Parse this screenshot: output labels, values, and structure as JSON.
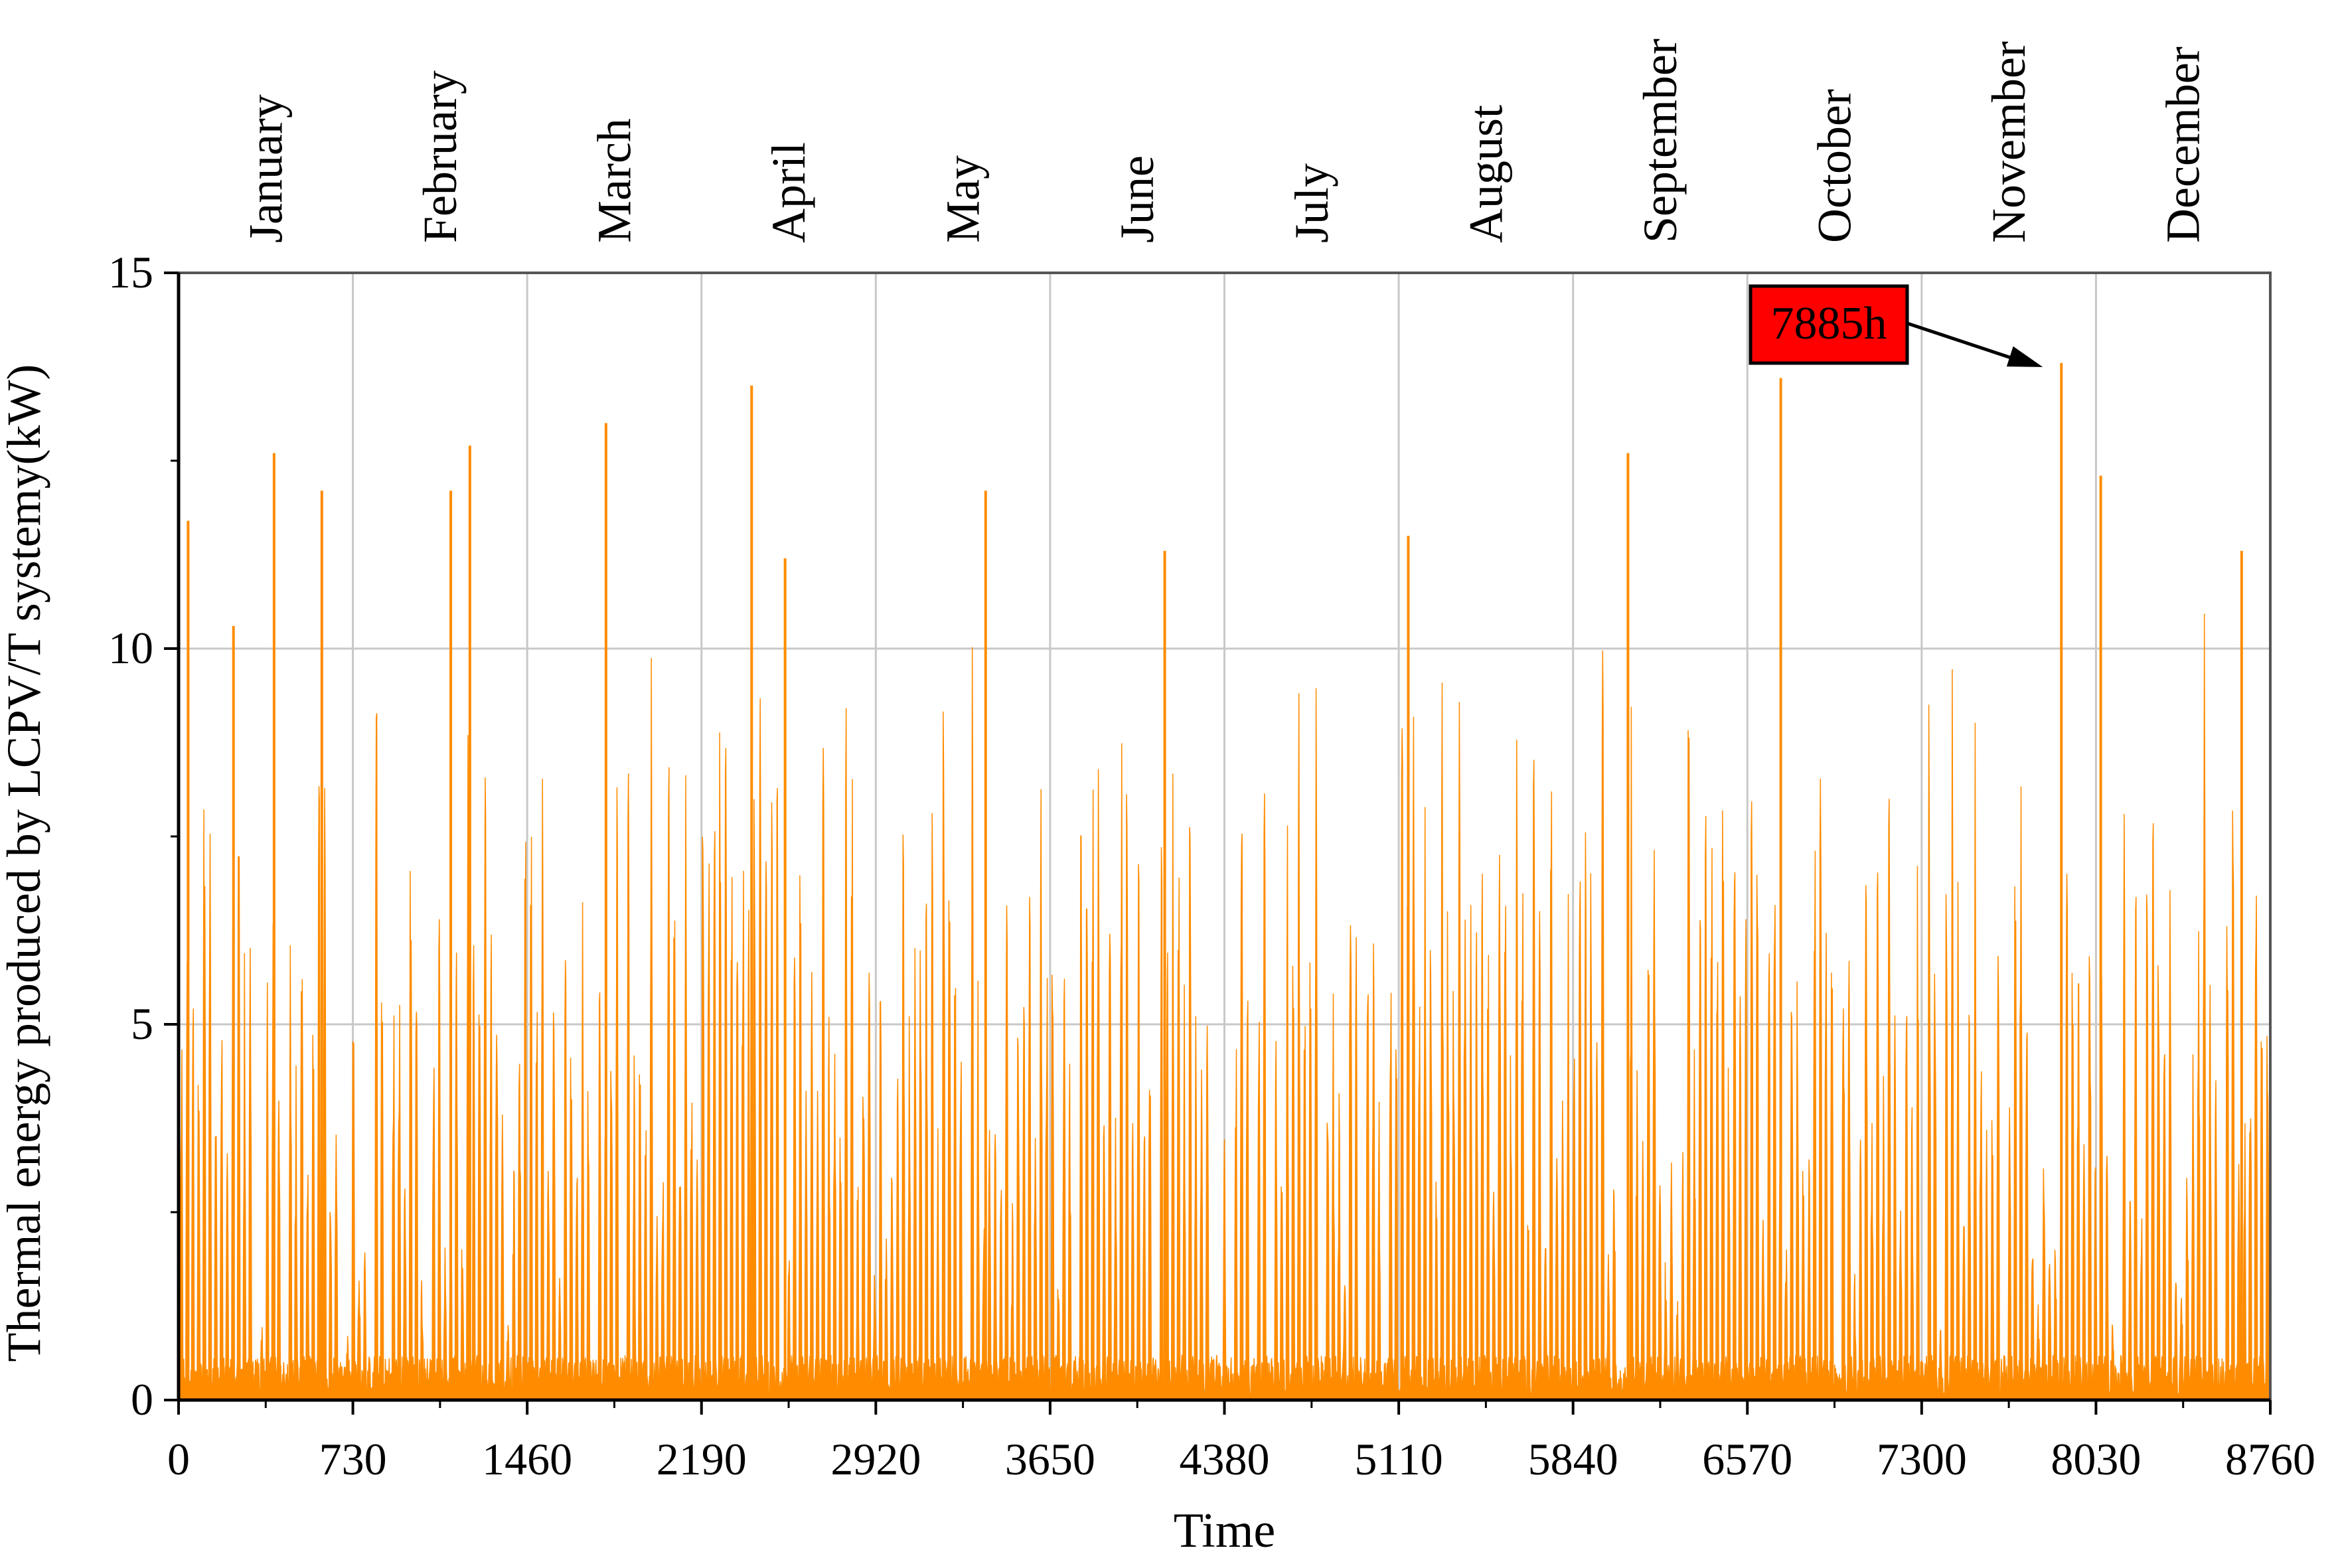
{
  "chart_data": {
    "type": "area",
    "title": "",
    "xlabel": "Time",
    "ylabel": "Thermal energy produced by LCPV/T systemy(kW)",
    "xlim": [
      0,
      8760
    ],
    "ylim": [
      0,
      15
    ],
    "x_ticks": [
      0,
      730,
      1460,
      2190,
      2920,
      3650,
      4380,
      5110,
      5840,
      6570,
      7300,
      8030,
      8760
    ],
    "y_ticks": [
      0,
      5,
      10,
      15
    ],
    "grid": true,
    "months": [
      "January",
      "February",
      "March",
      "April",
      "May",
      "June",
      "July",
      "August",
      "September",
      "October",
      "November",
      "December"
    ],
    "series": [
      {
        "color": "#ff8c00",
        "x": [
          40,
          230,
          400,
          600,
          1140,
          1220,
          1790,
          2400,
          2540,
          3380,
          4130,
          5150,
          6070,
          6710,
          7885,
          8050,
          8640
        ],
        "values": [
          11.7,
          10.3,
          12.6,
          12.1,
          12.1,
          12.7,
          13.0,
          13.5,
          11.2,
          12.1,
          11.3,
          11.5,
          12.6,
          13.6,
          13.8,
          12.3,
          11.3
        ]
      }
    ],
    "annotation": {
      "text": "7885h",
      "x": 7885,
      "y": 13.8,
      "box_color": "#ff0000"
    }
  }
}
